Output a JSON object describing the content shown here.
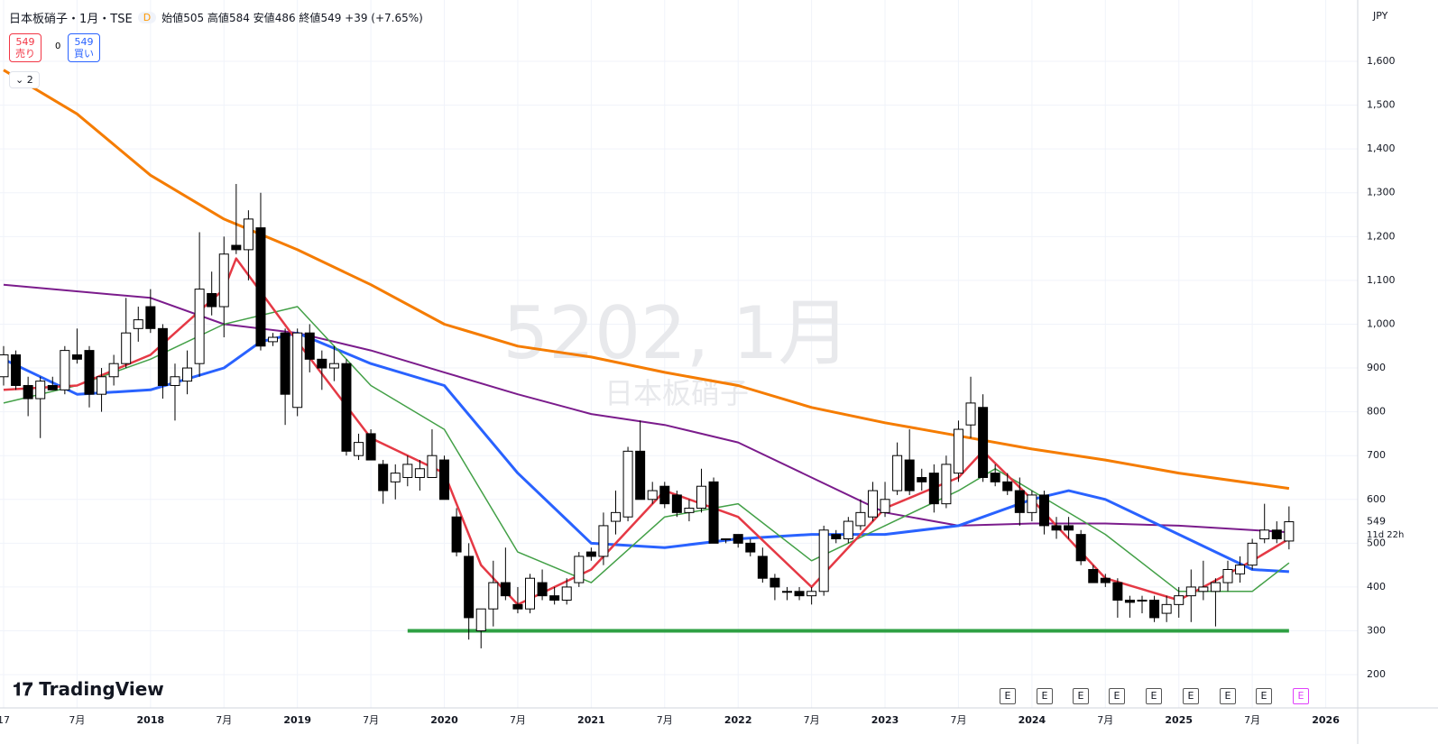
{
  "header": {
    "symbol": "日本板硝子・1月・TSE",
    "mode": "D",
    "open_label": "始値",
    "high_label": "高値",
    "low_label": "安値",
    "close_label": "終値",
    "change": "+39 (+7.65%)",
    "sell": "売り",
    "buy": "買い",
    "spread": "0",
    "indicators": "2",
    "brand": "TradingView"
  },
  "chart_data": {
    "type": "candlestick",
    "watermark": {
      "title": "5202, 1月",
      "subtitle": "日本板硝子"
    },
    "currency": "JPY",
    "countdown": "11d 22h",
    "earnings": "E",
    "x": [
      "2017-01",
      "2017-02",
      "2017-03",
      "2017-04",
      "2017-05",
      "2017-06",
      "2017-07",
      "2017-08",
      "2017-09",
      "2017-10",
      "2017-11",
      "2017-12",
      "2018-01",
      "2018-02",
      "2018-03",
      "2018-04",
      "2018-05",
      "2018-06",
      "2018-07",
      "2018-08",
      "2018-09",
      "2018-10",
      "2018-11",
      "2018-12",
      "2019-01",
      "2019-02",
      "2019-03",
      "2019-04",
      "2019-05",
      "2019-06",
      "2019-07",
      "2019-08",
      "2019-09",
      "2019-10",
      "2019-11",
      "2019-12",
      "2020-01",
      "2020-02",
      "2020-03",
      "2020-04",
      "2020-05",
      "2020-06",
      "2020-07",
      "2020-08",
      "2020-09",
      "2020-10",
      "2020-11",
      "2020-12",
      "2021-01",
      "2021-02",
      "2021-03",
      "2021-04",
      "2021-05",
      "2021-06",
      "2021-07",
      "2021-08",
      "2021-09",
      "2021-10",
      "2021-11",
      "2021-12",
      "2022-01",
      "2022-02",
      "2022-03",
      "2022-04",
      "2022-05",
      "2022-06",
      "2022-07",
      "2022-08",
      "2022-09",
      "2022-10",
      "2022-11",
      "2022-12",
      "2023-01",
      "2023-02",
      "2023-03",
      "2023-04",
      "2023-05",
      "2023-06",
      "2023-07",
      "2023-08",
      "2023-09",
      "2023-10",
      "2023-11",
      "2023-12",
      "2024-01",
      "2024-02",
      "2024-03",
      "2024-04",
      "2024-05",
      "2024-06",
      "2024-07",
      "2024-08",
      "2024-09",
      "2024-10",
      "2024-11",
      "2024-12",
      "2025-01",
      "2025-02",
      "2025-03",
      "2025-04",
      "2025-05",
      "2025-06",
      "2025-07",
      "2025-08",
      "2025-09",
      "2025-10"
    ],
    "open": [
      880,
      930,
      860,
      830,
      860,
      850,
      930,
      940,
      840,
      880,
      910,
      990,
      1040,
      990,
      860,
      870,
      910,
      1070,
      1040,
      1180,
      1170,
      1220,
      960,
      980,
      810,
      980,
      920,
      900,
      910,
      700,
      750,
      680,
      640,
      650,
      650,
      650,
      690,
      560,
      470,
      300,
      350,
      410,
      360,
      350,
      410,
      380,
      370,
      410,
      480,
      470,
      550,
      560,
      710,
      600,
      630,
      610,
      570,
      580,
      640,
      510,
      520,
      500,
      470,
      420,
      390,
      390,
      380,
      390,
      520,
      510,
      540,
      560,
      570,
      620,
      690,
      650,
      660,
      590,
      660,
      770,
      810,
      660,
      640,
      620,
      570,
      610,
      540,
      540,
      520,
      440,
      420,
      410,
      370,
      370,
      370,
      340,
      360,
      380,
      390,
      390,
      410,
      430,
      450,
      510,
      530,
      505
    ],
    "high": [
      950,
      940,
      880,
      880,
      880,
      950,
      990,
      950,
      900,
      930,
      1060,
      1040,
      1080,
      1000,
      910,
      940,
      1210,
      1120,
      1200,
      1320,
      1260,
      1300,
      980,
      990,
      990,
      1000,
      940,
      950,
      920,
      750,
      760,
      690,
      680,
      700,
      690,
      760,
      700,
      580,
      500,
      350,
      460,
      490,
      400,
      430,
      440,
      400,
      420,
      480,
      490,
      570,
      620,
      720,
      780,
      640,
      640,
      620,
      600,
      670,
      650,
      510,
      520,
      510,
      490,
      430,
      400,
      400,
      400,
      540,
      530,
      560,
      600,
      640,
      640,
      730,
      760,
      670,
      680,
      700,
      780,
      880,
      840,
      680,
      660,
      650,
      620,
      620,
      560,
      560,
      530,
      450,
      430,
      420,
      380,
      380,
      380,
      380,
      400,
      440,
      460,
      420,
      460,
      470,
      510,
      590,
      550,
      584
    ],
    "low": [
      860,
      850,
      790,
      740,
      850,
      840,
      910,
      810,
      800,
      860,
      900,
      960,
      980,
      830,
      780,
      840,
      880,
      1020,
      970,
      1160,
      1100,
      940,
      950,
      770,
      790,
      890,
      850,
      870,
      700,
      690,
      690,
      590,
      600,
      630,
      620,
      650,
      600,
      470,
      280,
      260,
      310,
      370,
      340,
      340,
      370,
      360,
      360,
      400,
      460,
      450,
      520,
      550,
      600,
      590,
      580,
      560,
      550,
      570,
      500,
      500,
      490,
      470,
      410,
      370,
      370,
      370,
      360,
      380,
      500,
      500,
      530,
      550,
      560,
      610,
      610,
      620,
      570,
      580,
      640,
      740,
      640,
      630,
      610,
      540,
      550,
      520,
      510,
      510,
      450,
      410,
      400,
      330,
      330,
      340,
      320,
      320,
      330,
      320,
      370,
      310,
      390,
      410,
      440,
      500,
      500,
      486
    ],
    "close": [
      930,
      860,
      830,
      870,
      850,
      940,
      920,
      840,
      880,
      910,
      980,
      1010,
      990,
      860,
      880,
      900,
      1080,
      1040,
      1160,
      1170,
      1240,
      950,
      970,
      840,
      980,
      920,
      900,
      910,
      710,
      730,
      690,
      620,
      660,
      680,
      670,
      700,
      600,
      480,
      330,
      350,
      410,
      380,
      350,
      420,
      380,
      370,
      400,
      470,
      470,
      540,
      570,
      710,
      600,
      620,
      590,
      570,
      580,
      630,
      500,
      510,
      500,
      480,
      420,
      400,
      390,
      380,
      390,
      530,
      510,
      550,
      570,
      620,
      600,
      700,
      620,
      640,
      590,
      680,
      760,
      820,
      650,
      640,
      620,
      570,
      610,
      540,
      530,
      530,
      460,
      410,
      410,
      370,
      365,
      370,
      330,
      360,
      380,
      400,
      400,
      410,
      440,
      450,
      500,
      530,
      510,
      549
    ],
    "up_color": "#ffffff",
    "down_color": "#000000",
    "lines": [
      {
        "color": "#f57c00",
        "width": 3,
        "x": [
          "2017-01",
          "2017-07",
          "2018-01",
          "2018-07",
          "2019-01",
          "2019-07",
          "2020-01",
          "2020-07",
          "2021-01",
          "2021-07",
          "2022-01",
          "2022-07",
          "2023-01",
          "2023-07",
          "2024-01",
          "2024-07",
          "2025-01",
          "2025-10"
        ],
        "values": [
          1580,
          1480,
          1340,
          1240,
          1170,
          1090,
          1000,
          950,
          925,
          890,
          860,
          810,
          775,
          745,
          715,
          690,
          660,
          625
        ]
      },
      {
        "color": "#7b1c8c",
        "width": 2,
        "x": [
          "2017-01",
          "2018-01",
          "2018-07",
          "2019-01",
          "2019-07",
          "2020-01",
          "2020-07",
          "2021-01",
          "2021-07",
          "2022-01",
          "2022-07",
          "2023-01",
          "2023-07",
          "2024-01",
          "2024-07",
          "2025-01",
          "2025-10"
        ],
        "values": [
          1090,
          1060,
          1000,
          980,
          940,
          890,
          840,
          795,
          770,
          730,
          650,
          570,
          540,
          545,
          545,
          540,
          525
        ]
      },
      {
        "color": "#2962ff",
        "width": 3,
        "x": [
          "2017-01",
          "2017-07",
          "2018-01",
          "2018-07",
          "2018-10",
          "2019-01",
          "2019-07",
          "2020-01",
          "2020-07",
          "2021-01",
          "2021-07",
          "2022-01",
          "2022-07",
          "2023-01",
          "2023-07",
          "2024-01",
          "2024-04",
          "2024-07",
          "2025-01",
          "2025-07",
          "2025-10"
        ],
        "values": [
          920,
          840,
          850,
          900,
          960,
          980,
          910,
          860,
          660,
          500,
          490,
          510,
          520,
          520,
          540,
          600,
          620,
          600,
          520,
          440,
          435
        ]
      },
      {
        "color": "#43a047",
        "width": 1.5,
        "x": [
          "2017-01",
          "2017-07",
          "2018-01",
          "2018-07",
          "2019-01",
          "2019-07",
          "2020-01",
          "2020-07",
          "2021-01",
          "2021-07",
          "2022-01",
          "2022-07",
          "2023-01",
          "2023-07",
          "2023-10",
          "2024-01",
          "2024-07",
          "2025-01",
          "2025-07",
          "2025-10"
        ],
        "values": [
          820,
          860,
          920,
          1000,
          1040,
          860,
          760,
          480,
          410,
          560,
          590,
          460,
          540,
          620,
          670,
          620,
          520,
          390,
          390,
          455
        ]
      },
      {
        "color": "#e53945",
        "width": 2.5,
        "x": [
          "2017-01",
          "2017-07",
          "2018-01",
          "2018-07",
          "2018-08",
          "2019-01",
          "2019-07",
          "2020-01",
          "2020-04",
          "2020-07",
          "2021-01",
          "2021-07",
          "2022-01",
          "2022-07",
          "2023-01",
          "2023-07",
          "2023-09",
          "2024-01",
          "2024-07",
          "2025-01",
          "2025-07",
          "2025-10"
        ],
        "values": [
          850,
          860,
          930,
          1080,
          1150,
          960,
          740,
          660,
          450,
          360,
          440,
          620,
          560,
          400,
          580,
          650,
          710,
          600,
          420,
          370,
          460,
          510
        ]
      }
    ],
    "hline": {
      "value": 300,
      "from": "2019-10",
      "to": "2025-10",
      "color": "#2ea043"
    },
    "ylim": [
      124,
      1740
    ],
    "yticks": [
      200,
      300,
      400,
      500,
      600,
      700,
      800,
      900,
      {
        "value": 1000,
        "label": "1,000"
      },
      {
        "value": 1100,
        "label": "1,100"
      },
      {
        "value": 1200,
        "label": "1,200"
      },
      {
        "value": 1300,
        "label": "1,300"
      },
      {
        "value": 1400,
        "label": "1,400"
      },
      {
        "value": 1500,
        "label": "1,500"
      },
      {
        "value": 1600,
        "label": "1,600"
      }
    ],
    "xticks": [
      {
        "value": "2017-01",
        "label": "17"
      },
      {
        "value": "2017-07",
        "label": "7月"
      },
      {
        "value": "2018-01",
        "label": "2018"
      },
      {
        "value": "2018-07",
        "label": "7月"
      },
      {
        "value": "2019-01",
        "label": "2019"
      },
      {
        "value": "2019-07",
        "label": "7月"
      },
      {
        "value": "2020-01",
        "label": "2020"
      },
      {
        "value": "2020-07",
        "label": "7月"
      },
      {
        "value": "2021-01",
        "label": "2021"
      },
      {
        "value": "2021-07",
        "label": "7月"
      },
      {
        "value": "2022-01",
        "label": "2022"
      },
      {
        "value": "2022-07",
        "label": "7月"
      },
      {
        "value": "2023-01",
        "label": "2023"
      },
      {
        "value": "2023-07",
        "label": "7月"
      },
      {
        "value": "2024-01",
        "label": "2024"
      },
      {
        "value": "2024-07",
        "label": "7月"
      },
      {
        "value": "2025-01",
        "label": "2025"
      },
      {
        "value": "2025-07",
        "label": "7月"
      },
      {
        "value": "2026-01",
        "label": "2026"
      }
    ],
    "grid": true
  }
}
